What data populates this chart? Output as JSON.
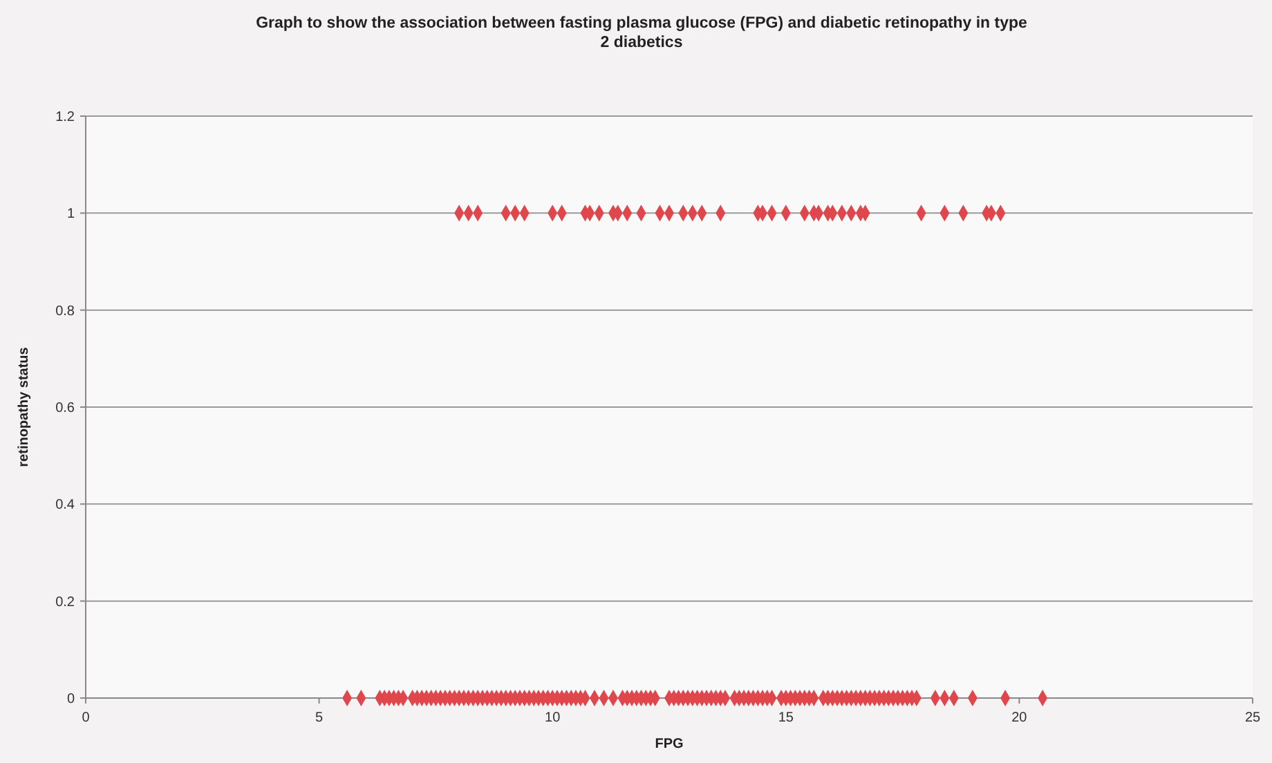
{
  "chart_data": {
    "type": "scatter",
    "title": "Graph to show the association between fasting plasma glucose (FPG) and diabetic retinopathy in type 2 diabetics",
    "xlabel": "FPG",
    "ylabel": "retinopathy status",
    "marker": "diamond",
    "grid": "y",
    "xlim": [
      0,
      25
    ],
    "xticks": [
      0,
      5,
      10,
      15,
      20,
      25
    ],
    "ylim": [
      0,
      1.2
    ],
    "yticks": [
      0,
      0.2,
      0.4,
      0.6,
      0.8,
      1,
      1.2
    ],
    "series": [
      {
        "color": "#e0474c",
        "x": [
          8.0,
          8.2,
          8.4,
          9.0,
          9.2,
          9.4,
          10.0,
          10.2,
          10.7,
          10.8,
          11.0,
          11.3,
          11.4,
          11.6,
          11.9,
          12.3,
          12.5,
          12.8,
          13.0,
          13.2,
          13.6,
          14.4,
          14.5,
          14.7,
          15.0,
          15.4,
          15.6,
          15.7,
          15.9,
          16.0,
          16.2,
          16.4,
          16.6,
          16.7,
          17.9,
          18.4,
          18.8,
          19.3,
          19.4,
          19.6
        ],
        "values": [
          1,
          1,
          1,
          1,
          1,
          1,
          1,
          1,
          1,
          1,
          1,
          1,
          1,
          1,
          1,
          1,
          1,
          1,
          1,
          1,
          1,
          1,
          1,
          1,
          1,
          1,
          1,
          1,
          1,
          1,
          1,
          1,
          1,
          1,
          1,
          1,
          1,
          1,
          1,
          1
        ]
      },
      {
        "color": "#e0474c",
        "x": [
          5.6,
          5.9,
          6.3,
          6.4,
          6.5,
          6.6,
          6.7,
          6.8,
          7.0,
          7.1,
          7.2,
          7.3,
          7.4,
          7.5,
          7.6,
          7.7,
          7.8,
          7.9,
          8.0,
          8.1,
          8.2,
          8.3,
          8.4,
          8.5,
          8.6,
          8.7,
          8.8,
          8.9,
          9.0,
          9.1,
          9.2,
          9.3,
          9.4,
          9.5,
          9.6,
          9.7,
          9.8,
          9.9,
          10.0,
          10.1,
          10.2,
          10.3,
          10.4,
          10.5,
          10.6,
          10.7,
          10.9,
          11.1,
          11.3,
          11.5,
          11.6,
          11.7,
          11.8,
          11.9,
          12.0,
          12.1,
          12.2,
          12.5,
          12.6,
          12.7,
          12.8,
          12.9,
          13.0,
          13.1,
          13.2,
          13.3,
          13.4,
          13.5,
          13.6,
          13.7,
          13.9,
          14.0,
          14.1,
          14.2,
          14.3,
          14.4,
          14.5,
          14.6,
          14.7,
          14.9,
          15.0,
          15.1,
          15.2,
          15.3,
          15.4,
          15.5,
          15.6,
          15.8,
          15.9,
          16.0,
          16.1,
          16.2,
          16.3,
          16.4,
          16.5,
          16.6,
          16.7,
          16.8,
          16.9,
          17.0,
          17.1,
          17.2,
          17.3,
          17.4,
          17.5,
          17.6,
          17.7,
          17.8,
          18.2,
          18.4,
          18.6,
          19.0,
          19.7,
          20.5
        ],
        "values": [
          0,
          0,
          0,
          0,
          0,
          0,
          0,
          0,
          0,
          0,
          0,
          0,
          0,
          0,
          0,
          0,
          0,
          0,
          0,
          0,
          0,
          0,
          0,
          0,
          0,
          0,
          0,
          0,
          0,
          0,
          0,
          0,
          0,
          0,
          0,
          0,
          0,
          0,
          0,
          0,
          0,
          0,
          0,
          0,
          0,
          0,
          0,
          0,
          0,
          0,
          0,
          0,
          0,
          0,
          0,
          0,
          0,
          0,
          0,
          0,
          0,
          0,
          0,
          0,
          0,
          0,
          0,
          0,
          0,
          0,
          0,
          0,
          0,
          0,
          0,
          0,
          0,
          0,
          0,
          0,
          0,
          0,
          0,
          0,
          0,
          0,
          0,
          0,
          0,
          0,
          0,
          0,
          0,
          0,
          0,
          0,
          0,
          0,
          0,
          0,
          0,
          0,
          0,
          0,
          0,
          0,
          0,
          0,
          0,
          0,
          0,
          0,
          0,
          0
        ]
      }
    ]
  }
}
